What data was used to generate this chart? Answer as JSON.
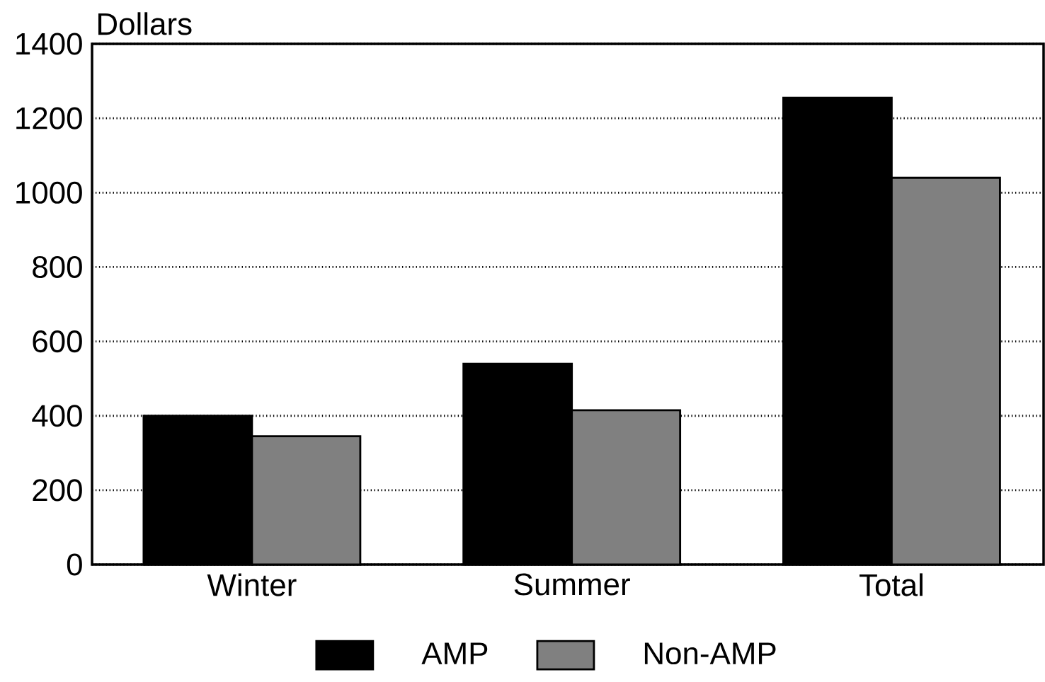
{
  "chart_data": {
    "type": "bar",
    "ylabel": "Dollars",
    "categories": [
      "Winter",
      "Summer",
      "Total"
    ],
    "series": [
      {
        "name": "AMP",
        "color": "#000000",
        "values": [
          400,
          540,
          1255
        ]
      },
      {
        "name": "Non-AMP",
        "color": "#808080",
        "values": [
          345,
          415,
          1040
        ]
      }
    ],
    "ylim": [
      0,
      1400
    ],
    "yticks": [
      0,
      200,
      400,
      600,
      800,
      1000,
      1200,
      1400
    ],
    "grid": "y",
    "legend": "bottom"
  }
}
